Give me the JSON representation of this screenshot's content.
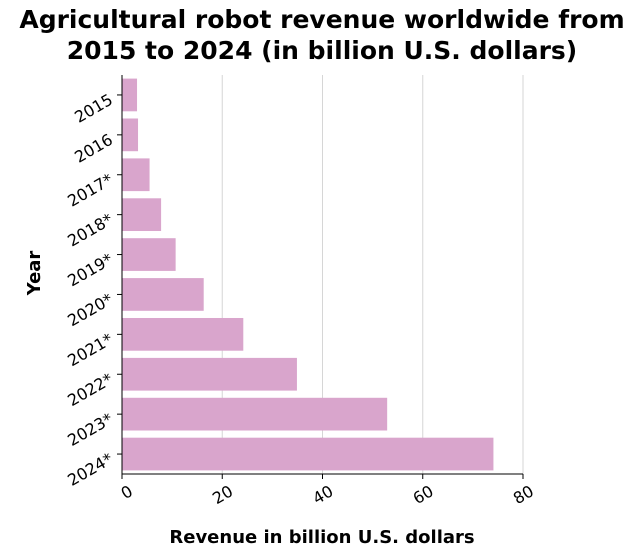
{
  "chart_data": {
    "type": "bar",
    "orientation": "horizontal",
    "title_lines": [
      "Agricultural robot revenue worldwide from",
      "2015 to 2024 (in billion U.S. dollars)"
    ],
    "xlabel": "Revenue in billion U.S. dollars",
    "ylabel": "Year",
    "xlim": [
      0,
      80
    ],
    "xticks": [
      0,
      20,
      40,
      60,
      80
    ],
    "categories": [
      "2015",
      "2016",
      "2017*",
      "2018*",
      "2019*",
      "2020*",
      "2021*",
      "2022*",
      "2023*",
      "2024*"
    ],
    "values": [
      3.0,
      3.2,
      5.5,
      7.8,
      10.7,
      16.3,
      24.2,
      34.9,
      52.9,
      74.1
    ],
    "bar_color": "#d9a5cc",
    "grid": true,
    "gridline_color": "#d6d6d6"
  }
}
